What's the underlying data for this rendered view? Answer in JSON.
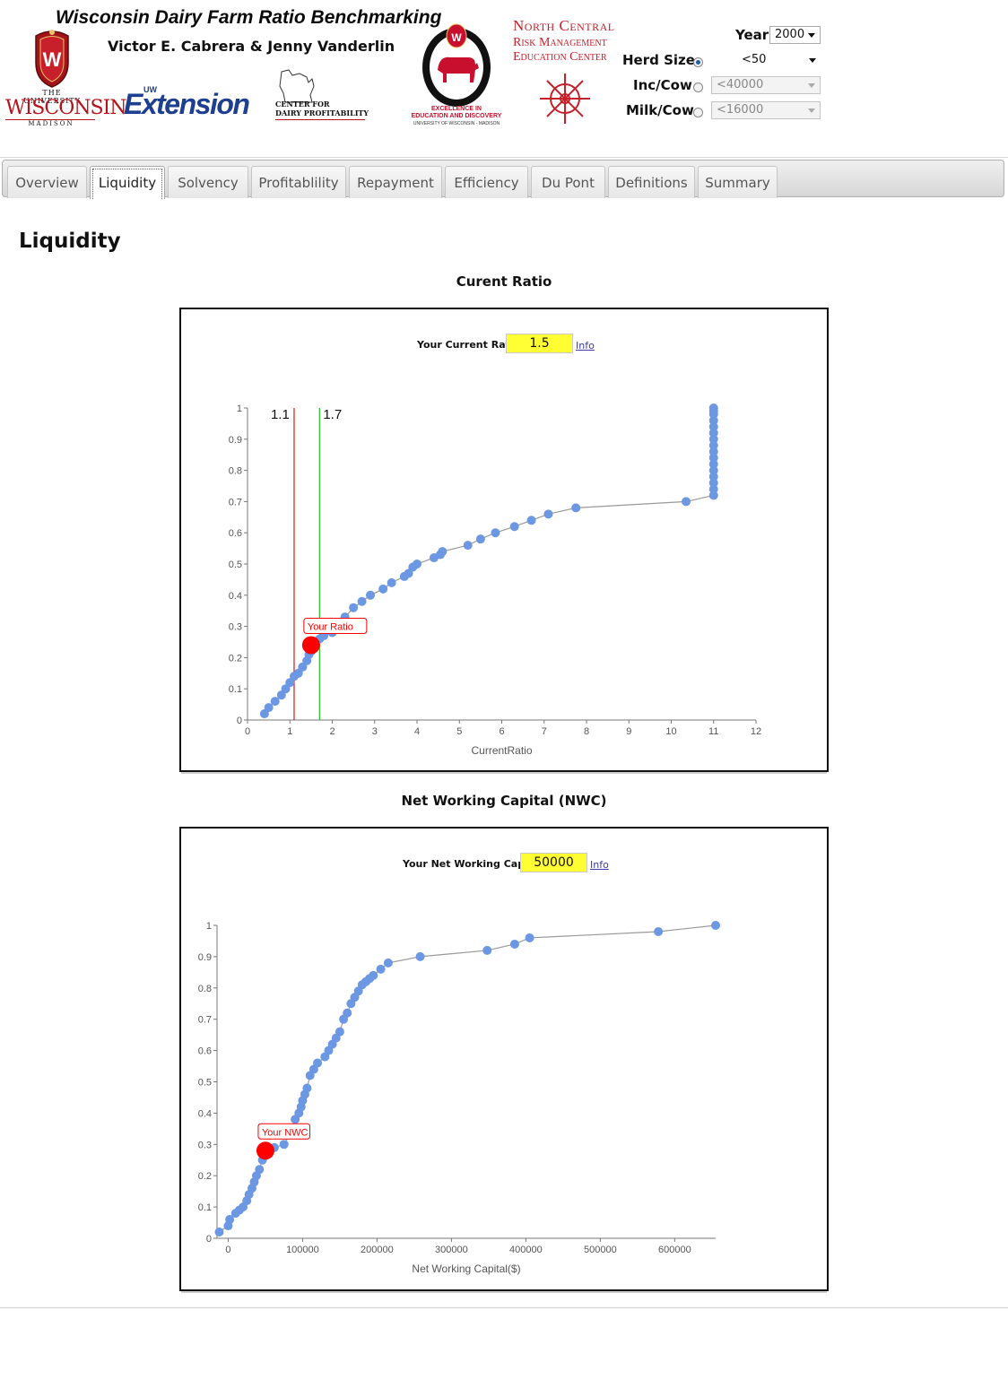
{
  "header": {
    "title": "Wisconsin Dairy Farm Ratio Benchmarking",
    "authors": "Victor E. Cabrera & Jenny Vanderlin",
    "logos": {
      "uw_top": "THE UNIVERSITY",
      "uw_main": "WISCONSIN",
      "uw_sub": "MADISON",
      "extension_prefix": "UW",
      "extension": "Extension",
      "cdp_line1": "CENTER FOR",
      "cdp_line2": "DAIRY PROFITABILITY",
      "dept_line1": "EXCELLENCE IN",
      "dept_line2": "EDUCATION AND DISCOVERY",
      "dept_line3": "UNIVERSITY OF WISCONSIN - MADISON",
      "nc_line1": "North Central",
      "nc_line2": "Risk Management",
      "nc_line3": "Education Center"
    }
  },
  "filters": {
    "year": {
      "label": "Year",
      "value": "2000"
    },
    "herd_size": {
      "label": "Herd Size",
      "value": "<50",
      "selected": true
    },
    "inc_cow": {
      "label": "Inc/Cow",
      "value": "<40000",
      "selected": false
    },
    "milk_cow": {
      "label": "Milk/Cow",
      "value": "<16000",
      "selected": false
    }
  },
  "tabs": [
    {
      "label": "Overview",
      "active": false
    },
    {
      "label": "Liquidity",
      "active": true
    },
    {
      "label": "Solvency",
      "active": false
    },
    {
      "label": "Profitablility",
      "active": false
    },
    {
      "label": "Repayment",
      "active": false
    },
    {
      "label": "Efficiency",
      "active": false
    },
    {
      "label": "Du Pont",
      "active": false
    },
    {
      "label": "Definitions",
      "active": false
    },
    {
      "label": "Summary",
      "active": false
    }
  ],
  "page_title": "Liquidity",
  "current_ratio": {
    "heading": "Curent Ratio",
    "your_label": "Your Current Ratio",
    "your_value": "1.5",
    "info_link": "Info"
  },
  "nwc": {
    "heading": "Net Working Capital (NWC)",
    "your_label": "Your Net Working Capital",
    "your_value": "50000",
    "info_link": "Info"
  },
  "chart_data": [
    {
      "type": "line",
      "xlabel": "CurrentRatio",
      "ylabel": "",
      "xlim": [
        0,
        12
      ],
      "ylim": [
        0,
        1
      ],
      "xticks": [
        0,
        1,
        2,
        3,
        4,
        5,
        6,
        7,
        8,
        9,
        10,
        11,
        12
      ],
      "yticks": [
        0,
        0.1,
        0.2,
        0.3,
        0.4,
        0.5,
        0.6,
        0.7,
        0.8,
        0.9,
        1
      ],
      "ytick_labels": [
        "0",
        "0.1",
        "0.2",
        "0.3",
        "0.4",
        "0.5",
        "0.6",
        "0.7",
        "0.8",
        "0.9",
        "1"
      ],
      "series": [
        {
          "color": "#6b97e3",
          "x": [
            0.4,
            0.5,
            0.65,
            0.8,
            0.9,
            1.0,
            1.1,
            1.2,
            1.3,
            1.4,
            1.45,
            1.5,
            1.6,
            1.7,
            1.8,
            2.0,
            2.3,
            2.5,
            2.7,
            2.9,
            3.2,
            3.4,
            3.7,
            3.8,
            3.9,
            4.0,
            4.4,
            4.55,
            4.6,
            5.2,
            5.5,
            5.85,
            6.3,
            6.7,
            7.1,
            7.75,
            10.35,
            11,
            11,
            11,
            11,
            11,
            11,
            11,
            11,
            11,
            11,
            11,
            11,
            11,
            11,
            11,
            11
          ],
          "y": [
            0.02,
            0.04,
            0.06,
            0.08,
            0.1,
            0.12,
            0.14,
            0.15,
            0.17,
            0.19,
            0.21,
            0.22,
            0.24,
            0.26,
            0.27,
            0.28,
            0.33,
            0.36,
            0.38,
            0.4,
            0.42,
            0.44,
            0.46,
            0.47,
            0.49,
            0.5,
            0.52,
            0.53,
            0.54,
            0.56,
            0.58,
            0.6,
            0.62,
            0.64,
            0.66,
            0.68,
            0.7,
            0.72,
            0.74,
            0.76,
            0.78,
            0.8,
            0.82,
            0.84,
            0.86,
            0.88,
            0.9,
            0.92,
            0.94,
            0.96,
            0.98,
            0.99,
            1.0
          ]
        }
      ],
      "reference_lines": [
        {
          "x": 1.1,
          "label": "1.1",
          "color": "#d11a1a"
        },
        {
          "x": 1.7,
          "label": "1.7",
          "color": "#1fbf1f"
        }
      ],
      "marker": {
        "x": 1.5,
        "y": 0.24,
        "label": "Your Ratio",
        "color": "#ff0000"
      }
    },
    {
      "type": "line",
      "xlabel": "Net Working Capital($)",
      "ylabel": "",
      "xlim": [
        -15000,
        655000
      ],
      "ylim": [
        0,
        1
      ],
      "xticks": [
        0,
        100000,
        200000,
        300000,
        400000,
        500000,
        600000
      ],
      "yticks": [
        0,
        0.1,
        0.2,
        0.3,
        0.4,
        0.5,
        0.6,
        0.7,
        0.8,
        0.9,
        1
      ],
      "ytick_labels": [
        "0",
        "0.1",
        "0.2",
        "0.3",
        "0.4",
        "0.5",
        "0.6",
        "0.7",
        "0.8",
        "0.9",
        "1"
      ],
      "series": [
        {
          "color": "#6b97e3",
          "x": [
            -12000,
            0,
            2000,
            10000,
            15000,
            20000,
            25000,
            28000,
            32000,
            35000,
            38000,
            42000,
            46000,
            50000,
            55000,
            62000,
            75000,
            85000,
            90000,
            95000,
            98000,
            100000,
            103000,
            106000,
            110000,
            115000,
            120000,
            130000,
            135000,
            140000,
            145000,
            150000,
            155000,
            160000,
            165000,
            170000,
            175000,
            180000,
            185000,
            190000,
            195000,
            205000,
            215000,
            258000,
            348000,
            385000,
            405000,
            578000,
            655000
          ],
          "y": [
            0.02,
            0.04,
            0.06,
            0.08,
            0.09,
            0.1,
            0.12,
            0.14,
            0.16,
            0.18,
            0.2,
            0.22,
            0.25,
            0.27,
            0.28,
            0.29,
            0.3,
            0.34,
            0.38,
            0.4,
            0.42,
            0.44,
            0.46,
            0.48,
            0.52,
            0.54,
            0.56,
            0.58,
            0.6,
            0.62,
            0.64,
            0.66,
            0.7,
            0.72,
            0.75,
            0.77,
            0.79,
            0.81,
            0.82,
            0.83,
            0.84,
            0.86,
            0.88,
            0.9,
            0.92,
            0.94,
            0.96,
            0.98,
            1.0
          ]
        }
      ],
      "marker": {
        "x": 50000,
        "y": 0.28,
        "label": "Your NWC",
        "color": "#ff0000"
      }
    }
  ]
}
